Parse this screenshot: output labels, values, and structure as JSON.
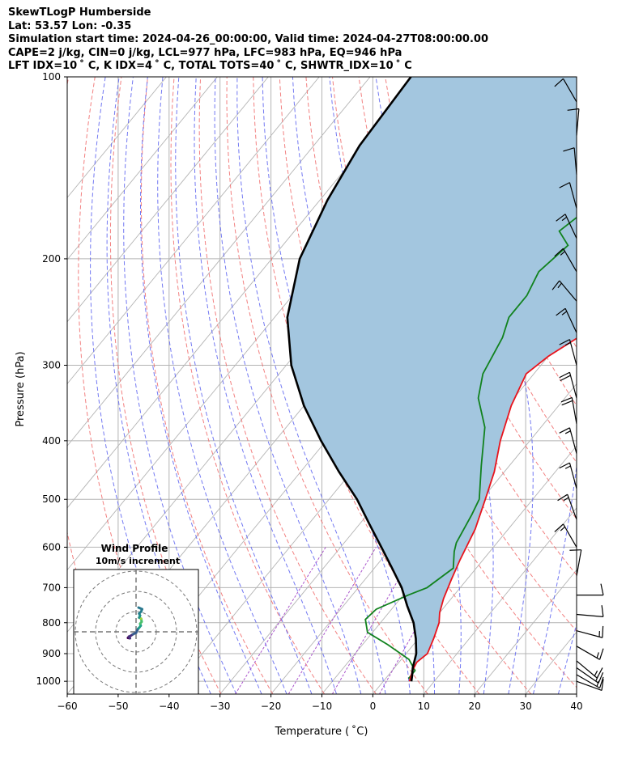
{
  "chart_data": {
    "type": "line",
    "subtype": "skew-T log-P diagram",
    "header": {
      "line1": "SkewTLogP Humberside",
      "line2": "Lat: 53.57   Lon: -0.35",
      "line3": "Simulation start time: 2024-04-26_00:00:00, Valid time: 2024-04-27T08:00:00.00",
      "line4": "CAPE=2 j/kg, CIN=0 j/kg, LCL=977 hPa, LFC=983 hPa, EQ=946 hPa",
      "line5": "LFT IDX=10 ˚ C, K IDX=4 ˚ C, TOTAL TOTS=40 ˚ C, SHWTR_IDX=10 ˚ C"
    },
    "xlabel": "Temperature ( ˚C)",
    "ylabel": "Pressure (hPa)",
    "xlim": [
      -60,
      40
    ],
    "ylim": [
      1050,
      100
    ],
    "x_ticks": [
      -60,
      -50,
      -40,
      -30,
      -20,
      -10,
      0,
      10,
      20,
      30,
      40
    ],
    "x_tick_labels": [
      "−60",
      "−50",
      "−40",
      "−30",
      "−20",
      "−10",
      "0",
      "10",
      "20",
      "30",
      "40"
    ],
    "y_ticks": [
      100,
      200,
      300,
      400,
      500,
      600,
      700,
      800,
      900,
      1000
    ],
    "y_tick_labels": [
      "100",
      "200",
      "300",
      "400",
      "500",
      "600",
      "700",
      "800",
      "900",
      "1000"
    ],
    "grid": true,
    "colors": {
      "temperature": "#e8141d",
      "dewpoint": "#11821e",
      "parcel": "#000000",
      "cape_fill": "#a3c6df",
      "dry_adiabat": "#f06a6a",
      "moist_adiabat": "#5a62f0",
      "mixing_ratio": "#aa55cc",
      "isotherm": "#b4b4b4",
      "grid": "#b4b4b4"
    },
    "series": [
      {
        "name": "Temperature",
        "points": [
          [
            5.1,
            1000
          ],
          [
            4.0,
            960
          ],
          [
            3.5,
            930
          ],
          [
            4.2,
            900
          ],
          [
            3.0,
            850
          ],
          [
            1.5,
            800
          ],
          [
            0.0,
            770
          ],
          [
            -1.5,
            730
          ],
          [
            -3.0,
            680
          ],
          [
            -4.5,
            630
          ],
          [
            -6.5,
            560
          ],
          [
            -9.3,
            500
          ],
          [
            -12.0,
            450
          ],
          [
            -15.8,
            400
          ],
          [
            -19.3,
            350
          ],
          [
            -21.5,
            310
          ],
          [
            -20.0,
            290
          ],
          [
            -17.2,
            270
          ],
          [
            -13.5,
            250
          ],
          [
            -10.0,
            235
          ],
          [
            -5.0,
            215
          ],
          [
            -3.0,
            200
          ],
          [
            0.0,
            185
          ],
          [
            3.6,
            170
          ],
          [
            6.0,
            155
          ],
          [
            9.0,
            140
          ],
          [
            13.0,
            125
          ],
          [
            16.0,
            112
          ],
          [
            18.5,
            100
          ]
        ]
      },
      {
        "name": "Dewpoint",
        "points": [
          [
            4.5,
            990
          ],
          [
            4.5,
            960
          ],
          [
            1.5,
            920
          ],
          [
            -5.0,
            870
          ],
          [
            -11.0,
            830
          ],
          [
            -13.5,
            790
          ],
          [
            -13.0,
            760
          ],
          [
            -9.0,
            720
          ],
          [
            -6.5,
            700
          ],
          [
            -4.5,
            650
          ],
          [
            -7.0,
            610
          ],
          [
            -8.0,
            590
          ],
          [
            -9.5,
            530
          ],
          [
            -10.5,
            500
          ],
          [
            -15.5,
            440
          ],
          [
            -21.0,
            380
          ],
          [
            -27.0,
            340
          ],
          [
            -30.0,
            310
          ],
          [
            -32.0,
            270
          ],
          [
            -34.0,
            250
          ],
          [
            -34.0,
            230
          ],
          [
            -35.5,
            210
          ],
          [
            -34.0,
            190
          ],
          [
            -38.0,
            180
          ],
          [
            -36.0,
            165
          ],
          [
            -31.0,
            145
          ],
          [
            -27.0,
            125
          ],
          [
            -22.0,
            110
          ],
          [
            -18.0,
            100
          ]
        ]
      },
      {
        "name": "Parcel",
        "points": [
          [
            5.5,
            1000
          ],
          [
            4.8,
            980
          ],
          [
            3.6,
            950
          ],
          [
            2.0,
            900
          ],
          [
            -0.5,
            850
          ],
          [
            -3.5,
            800
          ],
          [
            -7.5,
            750
          ],
          [
            -11.5,
            700
          ],
          [
            -16.5,
            650
          ],
          [
            -22.0,
            600
          ],
          [
            -28.0,
            550
          ],
          [
            -34.5,
            500
          ],
          [
            -42.5,
            450
          ],
          [
            -51.0,
            400
          ],
          [
            -60.0,
            350
          ],
          [
            -69.0,
            300
          ],
          [
            -77.5,
            250
          ],
          [
            -84.5,
            200
          ],
          [
            -88.5,
            160
          ],
          [
            -91.0,
            130
          ],
          [
            -92.0,
            100
          ]
        ]
      }
    ],
    "barbs": [
      {
        "p": 1000,
        "speed_kt": 10,
        "dir_deg": 110
      },
      {
        "p": 975,
        "speed_kt": 15,
        "dir_deg": 120
      },
      {
        "p": 950,
        "speed_kt": 15,
        "dir_deg": 125
      },
      {
        "p": 925,
        "speed_kt": 15,
        "dir_deg": 130
      },
      {
        "p": 875,
        "speed_kt": 15,
        "dir_deg": 120
      },
      {
        "p": 825,
        "speed_kt": 15,
        "dir_deg": 105
      },
      {
        "p": 775,
        "speed_kt": 10,
        "dir_deg": 95
      },
      {
        "p": 720,
        "speed_kt": 10,
        "dir_deg": 90
      },
      {
        "p": 670,
        "speed_kt": 10,
        "dir_deg": 10
      },
      {
        "p": 600,
        "speed_kt": 15,
        "dir_deg": 330
      },
      {
        "p": 540,
        "speed_kt": 15,
        "dir_deg": 340
      },
      {
        "p": 480,
        "speed_kt": 15,
        "dir_deg": 345
      },
      {
        "p": 420,
        "speed_kt": 15,
        "dir_deg": 345
      },
      {
        "p": 375,
        "speed_kt": 20,
        "dir_deg": 350
      },
      {
        "p": 340,
        "speed_kt": 20,
        "dir_deg": 345
      },
      {
        "p": 300,
        "speed_kt": 15,
        "dir_deg": 345
      },
      {
        "p": 265,
        "speed_kt": 15,
        "dir_deg": 335
      },
      {
        "p": 235,
        "speed_kt": 15,
        "dir_deg": 320
      },
      {
        "p": 210,
        "speed_kt": 15,
        "dir_deg": 330
      },
      {
        "p": 185,
        "speed_kt": 15,
        "dir_deg": 335
      },
      {
        "p": 165,
        "speed_kt": 10,
        "dir_deg": 345
      },
      {
        "p": 145,
        "speed_kt": 10,
        "dir_deg": 355
      },
      {
        "p": 125,
        "speed_kt": 10,
        "dir_deg": 5
      },
      {
        "p": 110,
        "speed_kt": 10,
        "dir_deg": 330
      }
    ],
    "hodograph": {
      "title_line1": "Wind Profile",
      "title_line2": "10m/s increment",
      "ring_step_ms": 10,
      "rings": 3,
      "points_uv_ms": [
        [
          -3.5,
          -2.3
        ],
        [
          -4.0,
          -3.0
        ],
        [
          -3.0,
          -3.2
        ],
        [
          -3.5,
          -2.5
        ],
        [
          -1.5,
          -1.2
        ],
        [
          0.0,
          -0.5
        ],
        [
          1.0,
          1.5
        ],
        [
          1.5,
          2.0
        ],
        [
          2.3,
          3.0
        ],
        [
          2.0,
          4.0
        ],
        [
          2.8,
          5.0
        ],
        [
          2.5,
          6.5
        ],
        [
          1.5,
          7.0
        ],
        [
          2.0,
          8.0
        ],
        [
          1.5,
          9.0
        ],
        [
          2.5,
          10.0
        ],
        [
          3.0,
          11.2
        ],
        [
          1.2,
          12.0
        ]
      ]
    }
  }
}
